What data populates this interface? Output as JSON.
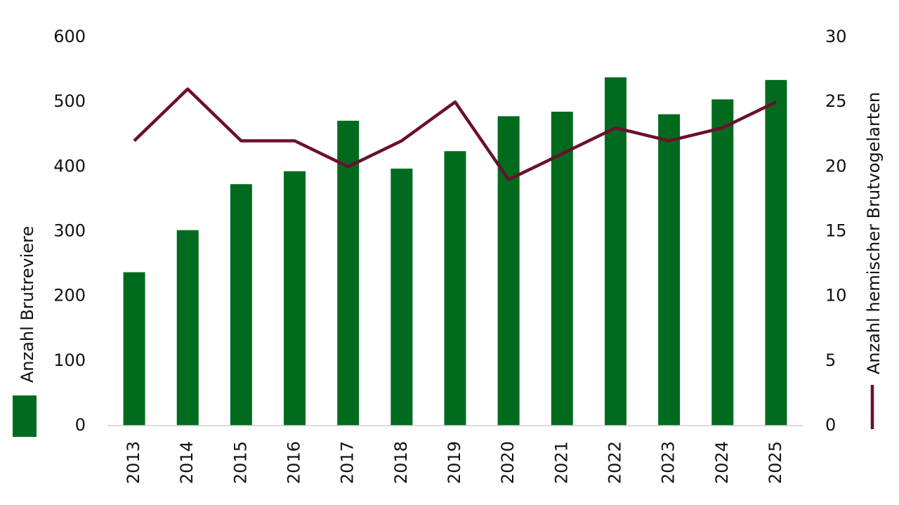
{
  "chart_data": {
    "type": "bar-line",
    "categories": [
      "2013",
      "2014",
      "2015",
      "2016",
      "2017",
      "2018",
      "2019",
      "2020",
      "2021",
      "2022",
      "2023",
      "2024",
      "2025"
    ],
    "series": [
      {
        "name": "Anzahl Brutreviere",
        "type": "bar",
        "color": "#006b1e",
        "axis": "y",
        "values": [
          237,
          302,
          373,
          393,
          471,
          397,
          424,
          478,
          485,
          538,
          481,
          504,
          534
        ]
      },
      {
        "name": "Anzahl hemischer Brutvogelarten",
        "type": "line",
        "color": "#6b0f2e",
        "axis": "y2",
        "values": [
          22,
          26,
          22,
          22,
          20,
          22,
          25,
          19,
          21,
          23,
          22,
          23,
          25
        ]
      }
    ],
    "ylim": [
      0,
      600
    ],
    "yticks": [
      0,
      100,
      200,
      300,
      400,
      500,
      600
    ],
    "y2lim": [
      0,
      30
    ],
    "y2ticks": [
      0,
      5,
      10,
      15,
      20,
      25,
      30
    ]
  }
}
